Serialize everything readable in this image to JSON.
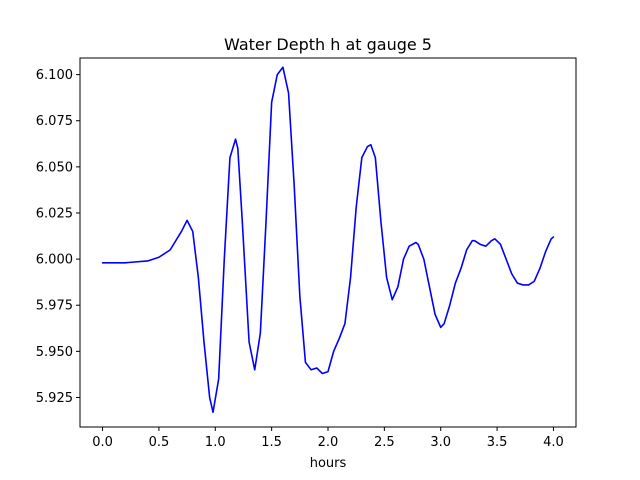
{
  "chart_data": {
    "type": "line",
    "title": "Water Depth h at gauge 5",
    "xlabel": "hours",
    "ylabel": "",
    "xlim": [
      -0.2,
      4.2
    ],
    "ylim": [
      5.909,
      6.109
    ],
    "xticks": [
      0.0,
      0.5,
      1.0,
      1.5,
      2.0,
      2.5,
      3.0,
      3.5,
      4.0
    ],
    "xtick_labels": [
      "0.0",
      "0.5",
      "1.0",
      "1.5",
      "2.0",
      "2.5",
      "3.0",
      "3.5",
      "4.0"
    ],
    "yticks": [
      5.925,
      5.95,
      5.975,
      6.0,
      6.025,
      6.05,
      6.075,
      6.1
    ],
    "ytick_labels": [
      "5.925",
      "5.950",
      "5.975",
      "6.000",
      "6.025",
      "6.050",
      "6.075",
      "6.100"
    ],
    "grid": false,
    "series": [
      {
        "color": "#0000ff",
        "x": [
          0.0,
          0.2,
          0.4,
          0.5,
          0.6,
          0.7,
          0.75,
          0.8,
          0.85,
          0.9,
          0.95,
          0.98,
          1.03,
          1.08,
          1.13,
          1.18,
          1.2,
          1.24,
          1.3,
          1.35,
          1.4,
          1.45,
          1.5,
          1.55,
          1.6,
          1.65,
          1.7,
          1.75,
          1.8,
          1.85,
          1.9,
          1.95,
          2.0,
          2.05,
          2.1,
          2.15,
          2.2,
          2.25,
          2.3,
          2.35,
          2.38,
          2.42,
          2.47,
          2.52,
          2.57,
          2.62,
          2.67,
          2.72,
          2.78,
          2.8,
          2.85,
          2.9,
          2.95,
          3.0,
          3.03,
          3.08,
          3.13,
          3.18,
          3.23,
          3.28,
          3.3,
          3.35,
          3.4,
          3.45,
          3.48,
          3.53,
          3.58,
          3.63,
          3.68,
          3.73,
          3.78,
          3.83,
          3.88,
          3.93,
          3.98,
          4.0
        ],
        "y": [
          5.998,
          5.998,
          5.999,
          6.001,
          6.005,
          6.015,
          6.021,
          6.015,
          5.99,
          5.955,
          5.925,
          5.917,
          5.935,
          6.0,
          6.055,
          6.065,
          6.06,
          6.02,
          5.955,
          5.94,
          5.96,
          6.02,
          6.085,
          6.1,
          6.104,
          6.09,
          6.04,
          5.98,
          5.944,
          5.94,
          5.941,
          5.938,
          5.939,
          5.95,
          5.957,
          5.965,
          5.99,
          6.028,
          6.055,
          6.061,
          6.062,
          6.055,
          6.02,
          5.99,
          5.978,
          5.985,
          6.0,
          6.007,
          6.009,
          6.008,
          6.0,
          5.985,
          5.97,
          5.963,
          5.965,
          5.975,
          5.987,
          5.995,
          6.005,
          6.01,
          6.01,
          6.008,
          6.007,
          6.01,
          6.011,
          6.008,
          6.0,
          5.992,
          5.987,
          5.986,
          5.986,
          5.988,
          5.995,
          6.004,
          6.011,
          6.012
        ]
      }
    ]
  }
}
